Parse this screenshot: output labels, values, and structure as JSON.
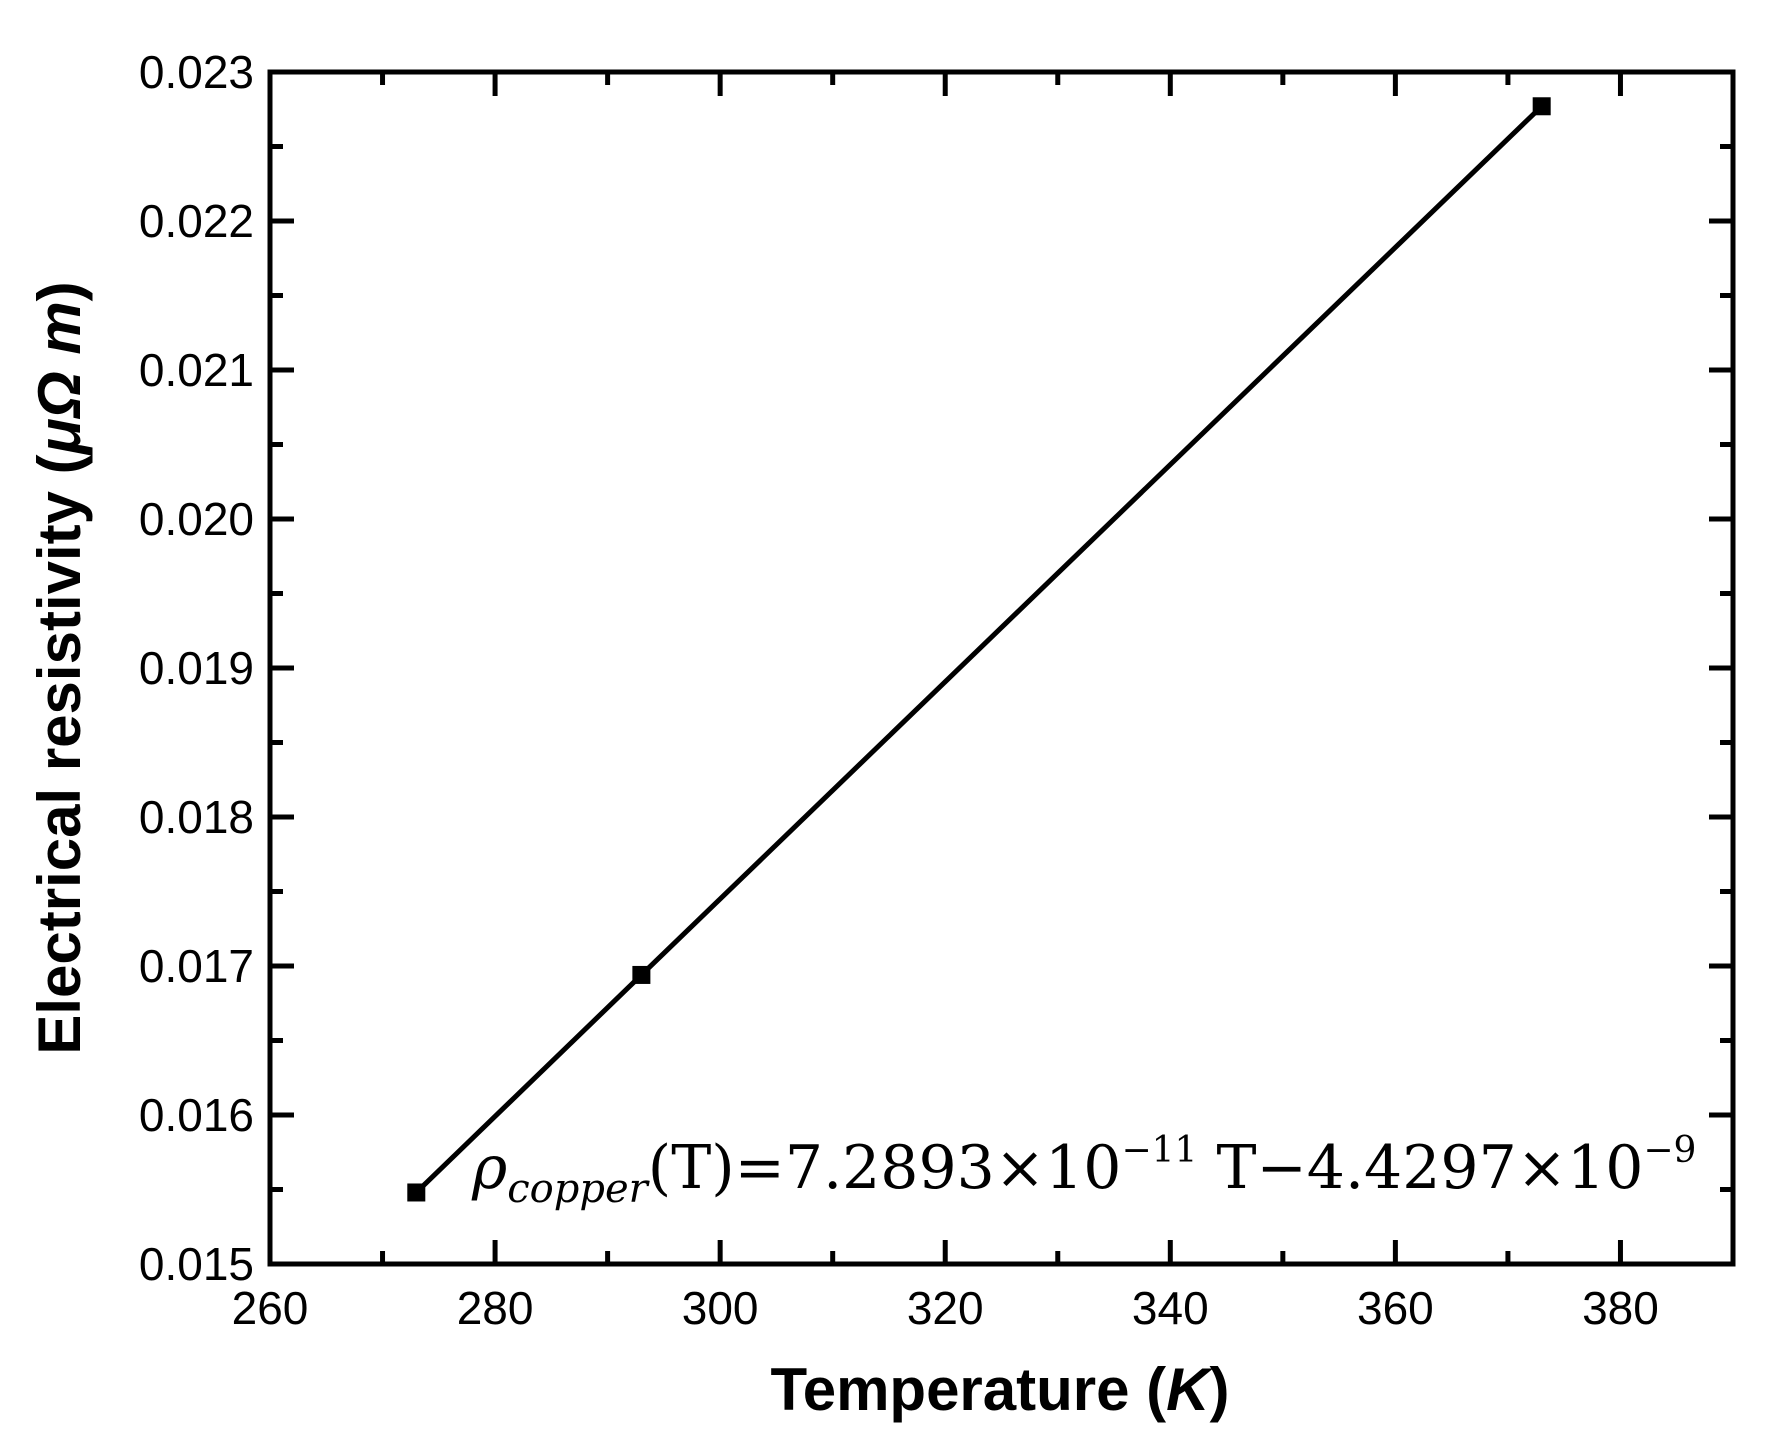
{
  "chart_data": {
    "type": "line",
    "title": "",
    "xlabel_main": "Temperature (",
    "xlabel_unit": "K",
    "xlabel_close": ")",
    "ylabel_main": "Electrical resistivity (",
    "ylabel_unit": "μΩ m",
    "ylabel_close": ")",
    "xlim": [
      260,
      390
    ],
    "ylim": [
      0.015,
      0.023
    ],
    "x_ticks": [
      "260",
      "280",
      "300",
      "320",
      "340",
      "360",
      "380"
    ],
    "y_ticks": [
      "0.015",
      "0.016",
      "0.017",
      "0.018",
      "0.019",
      "0.020",
      "0.021",
      "0.022",
      "0.023"
    ],
    "grid": false,
    "marker": "square",
    "line_color": "#000000",
    "series": [
      {
        "x": [
          273,
          293,
          373
        ],
        "y": [
          0.01548,
          0.01694,
          0.02277
        ]
      }
    ],
    "annotation": {
      "rho": "ρ",
      "subscript": "copper",
      "body": "(T)=7.2893×10",
      "exp1": "−11",
      "mid": " T−4.4297×10",
      "exp2": "−9"
    }
  }
}
